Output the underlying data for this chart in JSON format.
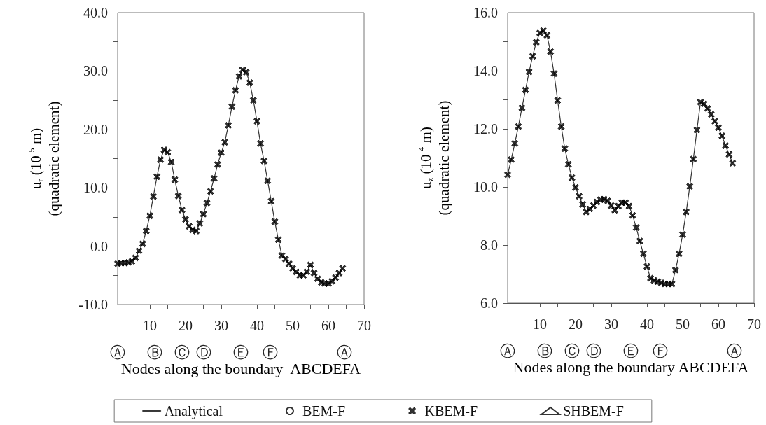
{
  "chart_data": [
    {
      "type": "line",
      "xlabel": "Nodes along the boundary  ABCDEFA",
      "ylabel": "u$_{r}$ (10$^{-5}$ m)\n(quadratic element)",
      "xlim": [
        1,
        70
      ],
      "xticks": [
        {
          "value": 5,
          "label": null
        },
        10,
        {
          "value": 15,
          "label": null
        },
        20,
        {
          "value": 25,
          "label": null
        },
        30,
        {
          "value": 35,
          "label": null
        },
        40,
        {
          "value": 45,
          "label": null
        },
        50,
        {
          "value": 55,
          "label": null
        },
        60,
        {
          "value": 65,
          "label": null
        },
        70
      ],
      "ylim": [
        -10,
        40
      ],
      "yticks": [
        {
          "value": -10,
          "label": "-10.0"
        },
        {
          "value": -5,
          "label": null
        },
        {
          "value": 0,
          "label": "0.0"
        },
        {
          "value": 5,
          "label": null
        },
        {
          "value": 10,
          "label": "10.0"
        },
        {
          "value": 15,
          "label": null
        },
        {
          "value": 20,
          "label": "20.0"
        },
        {
          "value": 25,
          "label": null
        },
        {
          "value": 30,
          "label": "30.0"
        },
        {
          "value": 35,
          "label": null
        },
        {
          "value": 40,
          "label": "40.0"
        }
      ],
      "grid": false,
      "legend": "bottom",
      "x": [
        1,
        2,
        3,
        4,
        5,
        6,
        7,
        8,
        9,
        10,
        11,
        12,
        13,
        14,
        15,
        16,
        17,
        18,
        19,
        20,
        21,
        22,
        23,
        24,
        25,
        26,
        27,
        28,
        29,
        30,
        31,
        32,
        33,
        34,
        35,
        36,
        37,
        38,
        39,
        40,
        41,
        42,
        43,
        44,
        45,
        46,
        47,
        48,
        49,
        50,
        51,
        52,
        53,
        54,
        55,
        56,
        57,
        58,
        59,
        60,
        61,
        62,
        63,
        64
      ],
      "annotations": [
        "Ⓐ",
        "Ⓑ",
        "Ⓒ",
        "Ⓓ",
        "Ⓔ",
        "Ⓕ",
        "Ⓐ"
      ],
      "series": [
        {
          "name": "Analytical",
          "type": "line",
          "marker": "none",
          "line_style": "solid",
          "color": "#333333",
          "values": [
            -3.0,
            -2.9,
            -2.9,
            -2.8,
            -2.6,
            -2.0,
            -0.8,
            0.4,
            2.6,
            5.2,
            8.5,
            11.9,
            14.8,
            16.5,
            16.1,
            14.4,
            11.4,
            8.6,
            6.2,
            4.6,
            3.4,
            2.8,
            2.6,
            3.9,
            5.5,
            7.4,
            9.4,
            11.6,
            14.0,
            16.0,
            17.8,
            20.7,
            23.9,
            26.7,
            29.1,
            30.2,
            29.8,
            28.0,
            25.0,
            21.4,
            17.6,
            14.6,
            11.2,
            7.7,
            4.2,
            1.1,
            -1.6,
            -2.2,
            -3.0,
            -3.8,
            -4.4,
            -5.0,
            -5.0,
            -4.4,
            -3.2,
            -4.6,
            -5.6,
            -6.2,
            -6.4,
            -6.4,
            -6.0,
            -5.4,
            -4.6,
            -3.8
          ]
        },
        {
          "name": "BEM-F",
          "type": "scatter",
          "marker": "circle",
          "color": "#000000",
          "values": [
            null,
            null,
            null,
            null,
            null,
            null,
            null,
            null,
            null,
            null,
            null,
            null,
            null,
            null,
            null,
            null,
            null,
            null,
            null,
            null,
            null,
            null,
            null,
            null,
            null,
            null,
            null,
            null,
            null,
            null,
            null,
            null,
            null,
            null,
            null,
            null,
            null,
            null,
            null,
            null,
            null,
            null,
            null,
            null,
            null,
            null,
            null,
            null,
            null,
            null,
            null,
            null,
            null,
            null,
            null,
            null,
            null,
            null,
            null,
            null,
            null,
            null,
            null,
            null
          ]
        },
        {
          "name": "KBEM-F",
          "type": "scatter",
          "marker": "cross",
          "color": "#000000",
          "values": [
            -3.0,
            -2.9,
            -2.9,
            -2.8,
            -2.6,
            -2.0,
            -0.8,
            0.4,
            2.6,
            5.2,
            8.5,
            11.9,
            14.8,
            16.5,
            16.1,
            14.4,
            11.4,
            8.6,
            6.2,
            4.6,
            3.4,
            2.8,
            2.6,
            3.9,
            5.5,
            7.4,
            9.4,
            11.6,
            14.0,
            16.0,
            17.8,
            20.7,
            23.9,
            26.7,
            29.1,
            30.2,
            29.8,
            28.0,
            25.0,
            21.4,
            17.6,
            14.6,
            11.2,
            7.7,
            4.2,
            1.1,
            -1.6,
            -2.2,
            -3.0,
            -3.8,
            -4.4,
            -5.0,
            -5.0,
            -4.4,
            -3.2,
            -4.6,
            -5.6,
            -6.2,
            -6.4,
            -6.4,
            -6.0,
            -5.4,
            -4.6,
            -3.8
          ]
        },
        {
          "name": "SHBEM-F",
          "type": "scatter",
          "marker": "triangle",
          "color": "#000000",
          "values": [
            null,
            null,
            null,
            null,
            null,
            null,
            null,
            null,
            null,
            null,
            null,
            null,
            null,
            null,
            null,
            null,
            null,
            null,
            null,
            null,
            null,
            null,
            null,
            null,
            null,
            null,
            null,
            null,
            null,
            null,
            null,
            null,
            null,
            null,
            null,
            null,
            null,
            null,
            null,
            null,
            null,
            null,
            null,
            null,
            null,
            null,
            null,
            null,
            null,
            null,
            null,
            null,
            null,
            null,
            null,
            null,
            null,
            null,
            null,
            null,
            null,
            null,
            null,
            null
          ]
        }
      ]
    },
    {
      "type": "line",
      "xlabel": "Nodes along the boundary ABCDEFA",
      "ylabel": "u$_{z}$ (10$^{-4}$ m)\n(quadratic element)",
      "xlim": [
        1,
        70
      ],
      "xticks": [
        {
          "value": 5,
          "label": null
        },
        10,
        {
          "value": 15,
          "label": null
        },
        20,
        {
          "value": 25,
          "label": null
        },
        30,
        {
          "value": 35,
          "label": null
        },
        40,
        {
          "value": 45,
          "label": null
        },
        50,
        {
          "value": 55,
          "label": null
        },
        60,
        {
          "value": 65,
          "label": null
        },
        70
      ],
      "ylim": [
        6,
        16
      ],
      "yticks": [
        {
          "value": 6,
          "label": "6.0"
        },
        {
          "value": 7,
          "label": null
        },
        {
          "value": 8,
          "label": "8.0"
        },
        {
          "value": 9,
          "label": null
        },
        {
          "value": 10,
          "label": "10.0"
        },
        {
          "value": 11,
          "label": null
        },
        {
          "value": 12,
          "label": "12.0"
        },
        {
          "value": 13,
          "label": null
        },
        {
          "value": 14,
          "label": "14.0"
        },
        {
          "value": 15,
          "label": null
        },
        {
          "value": 16,
          "label": "16.0"
        }
      ],
      "grid": false,
      "legend": false,
      "x": [
        1,
        2,
        3,
        4,
        5,
        6,
        7,
        8,
        9,
        10,
        11,
        12,
        13,
        14,
        15,
        16,
        17,
        18,
        19,
        20,
        21,
        22,
        23,
        24,
        25,
        26,
        27,
        28,
        29,
        30,
        31,
        32,
        33,
        34,
        35,
        36,
        37,
        38,
        39,
        40,
        41,
        42,
        43,
        44,
        45,
        46,
        47,
        48,
        49,
        50,
        51,
        52,
        53,
        54,
        55,
        56,
        57,
        58,
        59,
        60,
        61,
        62,
        63,
        64
      ],
      "annotations": [
        "Ⓐ",
        "Ⓑ",
        "Ⓒ",
        "Ⓓ",
        "Ⓔ",
        "Ⓕ",
        "Ⓐ"
      ],
      "series": [
        {
          "type": "line",
          "marker": "none",
          "line_style": "solid",
          "color": "#333333",
          "values": [
            10.42,
            10.94,
            11.5,
            12.08,
            12.72,
            13.34,
            13.96,
            14.5,
            14.98,
            15.3,
            15.38,
            15.22,
            14.66,
            13.9,
            12.98,
            12.08,
            11.32,
            10.78,
            10.32,
            9.98,
            9.68,
            9.4,
            9.14,
            9.24,
            9.36,
            9.48,
            9.56,
            9.58,
            9.52,
            9.36,
            9.2,
            9.34,
            9.46,
            9.46,
            9.34,
            9.02,
            8.6,
            8.14,
            7.7,
            7.26,
            6.86,
            6.78,
            6.74,
            6.7,
            6.66,
            6.66,
            6.66,
            7.14,
            7.7,
            8.36,
            9.14,
            10.02,
            10.96,
            11.96,
            12.92,
            12.86,
            12.7,
            12.5,
            12.26,
            12.04,
            11.76,
            11.42,
            11.12,
            10.82
          ]
        },
        {
          "type": "scatter",
          "marker": "cross",
          "color": "#000000",
          "values": [
            10.42,
            10.94,
            11.5,
            12.08,
            12.72,
            13.34,
            13.96,
            14.5,
            14.98,
            15.3,
            15.38,
            15.22,
            14.66,
            13.9,
            12.98,
            12.08,
            11.32,
            10.78,
            10.32,
            9.98,
            9.68,
            9.4,
            9.14,
            9.24,
            9.36,
            9.48,
            9.56,
            9.58,
            9.52,
            9.36,
            9.2,
            9.34,
            9.46,
            9.46,
            9.34,
            9.02,
            8.6,
            8.14,
            7.7,
            7.26,
            6.86,
            6.78,
            6.74,
            6.7,
            6.66,
            6.66,
            6.66,
            7.14,
            7.7,
            8.36,
            9.14,
            10.02,
            10.96,
            11.96,
            12.92,
            12.86,
            12.7,
            12.5,
            12.26,
            12.04,
            11.76,
            11.42,
            11.12,
            10.82
          ]
        }
      ]
    }
  ]
}
